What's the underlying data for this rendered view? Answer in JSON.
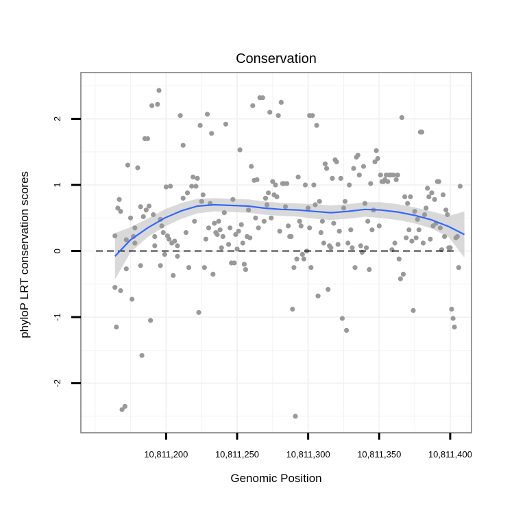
{
  "chart_data": {
    "type": "scatter",
    "title": "Conservation",
    "xlabel": "Genomic Position",
    "ylabel": "phyloP LRT conservation scores",
    "xlim": [
      10811140,
      10811415
    ],
    "ylim": [
      -2.75,
      2.7
    ],
    "x_ticks": [
      10811200,
      10811250,
      10811300,
      10811350,
      10811400
    ],
    "x_tick_labels": [
      "10,811,200",
      "10,811,250",
      "10,811,300",
      "10,811,350",
      "10,811,400"
    ],
    "y_ticks": [
      -2,
      -1,
      0,
      1,
      2
    ],
    "y_tick_labels": [
      "-2",
      "-1",
      "0",
      "1",
      "2"
    ],
    "grid": true,
    "reference_line": {
      "y": 0,
      "style": "dashed"
    },
    "colors": {
      "points": "#999999",
      "smooth": "#3366ff",
      "band": "#cccccc",
      "frame": "#7f7f7f",
      "grid": "#f2f2f2"
    },
    "smooth": {
      "x": [
        10811164,
        10811175,
        10811187,
        10811199,
        10811211,
        10811222,
        10811234,
        10811246,
        10811258,
        10811269,
        10811281,
        10811293,
        10811304,
        10811316,
        10811328,
        10811340,
        10811351,
        10811363,
        10811375,
        10811387,
        10811399,
        10811410
      ],
      "y": [
        -0.08,
        0.17,
        0.35,
        0.5,
        0.61,
        0.68,
        0.7,
        0.69,
        0.68,
        0.65,
        0.63,
        0.62,
        0.6,
        0.58,
        0.6,
        0.63,
        0.62,
        0.59,
        0.54,
        0.47,
        0.37,
        0.25
      ],
      "lower": [
        -0.43,
        -0.02,
        0.21,
        0.37,
        0.49,
        0.57,
        0.6,
        0.59,
        0.58,
        0.55,
        0.53,
        0.52,
        0.49,
        0.47,
        0.49,
        0.52,
        0.5,
        0.47,
        0.42,
        0.34,
        0.21,
        -0.1
      ],
      "upper": [
        0.27,
        0.36,
        0.49,
        0.63,
        0.73,
        0.79,
        0.8,
        0.79,
        0.78,
        0.75,
        0.73,
        0.72,
        0.71,
        0.69,
        0.71,
        0.74,
        0.74,
        0.71,
        0.66,
        0.6,
        0.53,
        0.6
      ]
    },
    "points": [
      [
        10811164,
        0.23
      ],
      [
        10811164,
        -0.55
      ],
      [
        10811165,
        -1.15
      ],
      [
        10811166,
        0.65
      ],
      [
        10811167,
        0.78
      ],
      [
        10811168,
        0.6
      ],
      [
        10811168,
        -0.6
      ],
      [
        10811169,
        -2.4
      ],
      [
        10811171,
        -2.35
      ],
      [
        10811172,
        0.17
      ],
      [
        10811172,
        -0.27
      ],
      [
        10811173,
        1.3
      ],
      [
        10811175,
        0.5
      ],
      [
        10811176,
        -0.73
      ],
      [
        10811177,
        0.22
      ],
      [
        10811178,
        0.12
      ],
      [
        10811178,
        0.35
      ],
      [
        10811180,
        1.26
      ],
      [
        10811182,
        0.67
      ],
      [
        10811182,
        -0.22
      ],
      [
        10811183,
        -1.58
      ],
      [
        10811184,
        0.52
      ],
      [
        10811185,
        1.7
      ],
      [
        10811186,
        0.62
      ],
      [
        10811187,
        1.7
      ],
      [
        10811188,
        0.68
      ],
      [
        10811189,
        -1.05
      ],
      [
        10811190,
        2.2
      ],
      [
        10811191,
        0.55
      ],
      [
        10811192,
        0.22
      ],
      [
        10811192,
        0.08
      ],
      [
        10811194,
        2.22
      ],
      [
        10811195,
        2.43
      ],
      [
        10811196,
        0.48
      ],
      [
        10811196,
        -0.22
      ],
      [
        10811197,
        0.38
      ],
      [
        10811198,
        0.28
      ],
      [
        10811199,
        -0.05
      ],
      [
        10811200,
        0.97
      ],
      [
        10811201,
        0.23
      ],
      [
        10811202,
        0.18
      ],
      [
        10811203,
        0.98
      ],
      [
        10811204,
        0.12
      ],
      [
        10811205,
        -0.37
      ],
      [
        10811206,
        0.15
      ],
      [
        10811208,
        0.08
      ],
      [
        10811208,
        -0.08
      ],
      [
        10811210,
        2.05
      ],
      [
        10811212,
        0.8
      ],
      [
        10811212,
        1.6
      ],
      [
        10811214,
        0.28
      ],
      [
        10811215,
        0.88
      ],
      [
        10811216,
        -0.25
      ],
      [
        10811218,
        0.98
      ],
      [
        10811219,
        1.12
      ],
      [
        10811220,
        0.45
      ],
      [
        10811221,
        0.98
      ],
      [
        10811222,
        1.1
      ],
      [
        10811223,
        -0.93
      ],
      [
        10811224,
        1.9
      ],
      [
        10811225,
        0.75
      ],
      [
        10811226,
        0.85
      ],
      [
        10811227,
        -0.25
      ],
      [
        10811228,
        0.18
      ],
      [
        10811229,
        2.07
      ],
      [
        10811230,
        0.35
      ],
      [
        10811231,
        0.72
      ],
      [
        10811232,
        1.78
      ],
      [
        10811233,
        -0.35
      ],
      [
        10811234,
        0.42
      ],
      [
        10811235,
        0.28
      ],
      [
        10811236,
        0.25
      ],
      [
        10811237,
        0.45
      ],
      [
        10811238,
        0.32
      ],
      [
        10811239,
        0.05
      ],
      [
        10811240,
        0.22
      ],
      [
        10811241,
        0.58
      ],
      [
        10811242,
        1.92
      ],
      [
        10811244,
        0.1
      ],
      [
        10811245,
        0.35
      ],
      [
        10811246,
        -0.18
      ],
      [
        10811247,
        0.78
      ],
      [
        10811248,
        -0.18
      ],
      [
        10811249,
        0.25
      ],
      [
        10811250,
        0.03
      ],
      [
        10811251,
        0.3
      ],
      [
        10811252,
        1.53
      ],
      [
        10811253,
        0.4
      ],
      [
        10811254,
        0.12
      ],
      [
        10811255,
        -0.2
      ],
      [
        10811256,
        -0.28
      ],
      [
        10811257,
        0.22
      ],
      [
        10811258,
        0.62
      ],
      [
        10811259,
        0.2
      ],
      [
        10811260,
        1.28
      ],
      [
        10811261,
        2.2
      ],
      [
        10811262,
        1.07
      ],
      [
        10811263,
        0.5
      ],
      [
        10811264,
        1.08
      ],
      [
        10811265,
        0.35
      ],
      [
        10811266,
        2.32
      ],
      [
        10811268,
        2.32
      ],
      [
        10811269,
        0.45
      ],
      [
        10811270,
        0.8
      ],
      [
        10811271,
        0.7
      ],
      [
        10811272,
        0.88
      ],
      [
        10811273,
        2.1
      ],
      [
        10811274,
        0.5
      ],
      [
        10811275,
        1.05
      ],
      [
        10811276,
        0.85
      ],
      [
        10811277,
        1.0
      ],
      [
        10811278,
        0.82
      ],
      [
        10811279,
        2.05
      ],
      [
        10811280,
        0.3
      ],
      [
        10811281,
        2.25
      ],
      [
        10811282,
        1.02
      ],
      [
        10811283,
        1.02
      ],
      [
        10811284,
        0.67
      ],
      [
        10811285,
        1.02
      ],
      [
        10811286,
        0.38
      ],
      [
        10811287,
        0.22
      ],
      [
        10811288,
        0.22
      ],
      [
        10811289,
        -0.88
      ],
      [
        10811290,
        -0.25
      ],
      [
        10811291,
        -2.5
      ],
      [
        10811292,
        -0.12
      ],
      [
        10811293,
        1.12
      ],
      [
        10811294,
        0.45
      ],
      [
        10811295,
        0.38
      ],
      [
        10811296,
        -0.05
      ],
      [
        10811297,
        -0.12
      ],
      [
        10811298,
        1.0
      ],
      [
        10811299,
        0.0
      ],
      [
        10811300,
        0.65
      ],
      [
        10811301,
        0.35
      ],
      [
        10811301,
        2.05
      ],
      [
        10811302,
        -0.25
      ],
      [
        10811303,
        2.05
      ],
      [
        10811304,
        1.0
      ],
      [
        10811305,
        0.7
      ],
      [
        10811306,
        1.9
      ],
      [
        10811307,
        -0.68
      ],
      [
        10811308,
        0.75
      ],
      [
        10811309,
        0.28
      ],
      [
        10811310,
        0.45
      ],
      [
        10811311,
        0.12
      ],
      [
        10811312,
        1.32
      ],
      [
        10811313,
        1.25
      ],
      [
        10811314,
        -0.58
      ],
      [
        10811315,
        0.08
      ],
      [
        10811316,
        0.05
      ],
      [
        10811317,
        1.1
      ],
      [
        10811318,
        0.42
      ],
      [
        10811319,
        1.38
      ],
      [
        10811320,
        1.35
      ],
      [
        10811321,
        0.1
      ],
      [
        10811322,
        0.3
      ],
      [
        10811323,
        1.1
      ],
      [
        10811324,
        -1.02
      ],
      [
        10811325,
        0.65
      ],
      [
        10811326,
        0.75
      ],
      [
        10811327,
        -1.2
      ],
      [
        10811328,
        0.12
      ],
      [
        10811329,
        1.0
      ],
      [
        10811330,
        0.32
      ],
      [
        10811331,
        0.05
      ],
      [
        10811332,
        1.25
      ],
      [
        10811333,
        -0.25
      ],
      [
        10811334,
        1.42
      ],
      [
        10811335,
        1.45
      ],
      [
        10811336,
        1.15
      ],
      [
        10811337,
        0.08
      ],
      [
        10811338,
        -0.02
      ],
      [
        10811339,
        1.28
      ],
      [
        10811340,
        0.72
      ],
      [
        10811341,
        0.05
      ],
      [
        10811342,
        0.45
      ],
      [
        10811343,
        -0.28
      ],
      [
        10811344,
        1.02
      ],
      [
        10811345,
        0.32
      ],
      [
        10811346,
        0.62
      ],
      [
        10811347,
        1.35
      ],
      [
        10811348,
        1.52
      ],
      [
        10811349,
        1.4
      ],
      [
        10811350,
        0.38
      ],
      [
        10811351,
        1.15
      ],
      [
        10811352,
        1.05
      ],
      [
        10811353,
        1.05
      ],
      [
        10811354,
        1.08
      ],
      [
        10811355,
        1.15
      ],
      [
        10811356,
        1.05
      ],
      [
        10811357,
        1.15
      ],
      [
        10811358,
        1.15
      ],
      [
        10811359,
        0.02
      ],
      [
        10811360,
        1.15
      ],
      [
        10811361,
        0.12
      ],
      [
        10811362,
        1.08
      ],
      [
        10811363,
        1.15
      ],
      [
        10811364,
        -0.12
      ],
      [
        10811365,
        -0.42
      ],
      [
        10811366,
        2.02
      ],
      [
        10811367,
        -0.35
      ],
      [
        10811368,
        0.82
      ],
      [
        10811369,
        0.2
      ],
      [
        10811370,
        0.72
      ],
      [
        10811371,
        0.32
      ],
      [
        10811372,
        0.82
      ],
      [
        10811373,
        0.15
      ],
      [
        10811374,
        -0.9
      ],
      [
        10811375,
        0.6
      ],
      [
        10811376,
        0.2
      ],
      [
        10811377,
        0.48
      ],
      [
        10811378,
        0.32
      ],
      [
        10811379,
        1.8
      ],
      [
        10811380,
        1.8
      ],
      [
        10811381,
        0.12
      ],
      [
        10811382,
        0.55
      ],
      [
        10811383,
        0.65
      ],
      [
        10811384,
        0.95
      ],
      [
        10811385,
        0.82
      ],
      [
        10811386,
        0.18
      ],
      [
        10811387,
        0.88
      ],
      [
        10811388,
        0.38
      ],
      [
        10811389,
        0.78
      ],
      [
        10811390,
        0.42
      ],
      [
        10811391,
        1.05
      ],
      [
        10811392,
        1.05
      ],
      [
        10811393,
        0.35
      ],
      [
        10811394,
        0.02
      ],
      [
        10811395,
        0.85
      ],
      [
        10811396,
        0.22
      ],
      [
        10811397,
        0.62
      ],
      [
        10811398,
        0.55
      ],
      [
        10811399,
        0.05
      ],
      [
        10811400,
        0.05
      ],
      [
        10811401,
        -0.88
      ],
      [
        10811402,
        -1.02
      ],
      [
        10811403,
        -1.15
      ],
      [
        10811404,
        0.2
      ],
      [
        10811405,
        0.22
      ],
      [
        10811406,
        -0.25
      ],
      [
        10811407,
        0.98
      ]
    ]
  }
}
